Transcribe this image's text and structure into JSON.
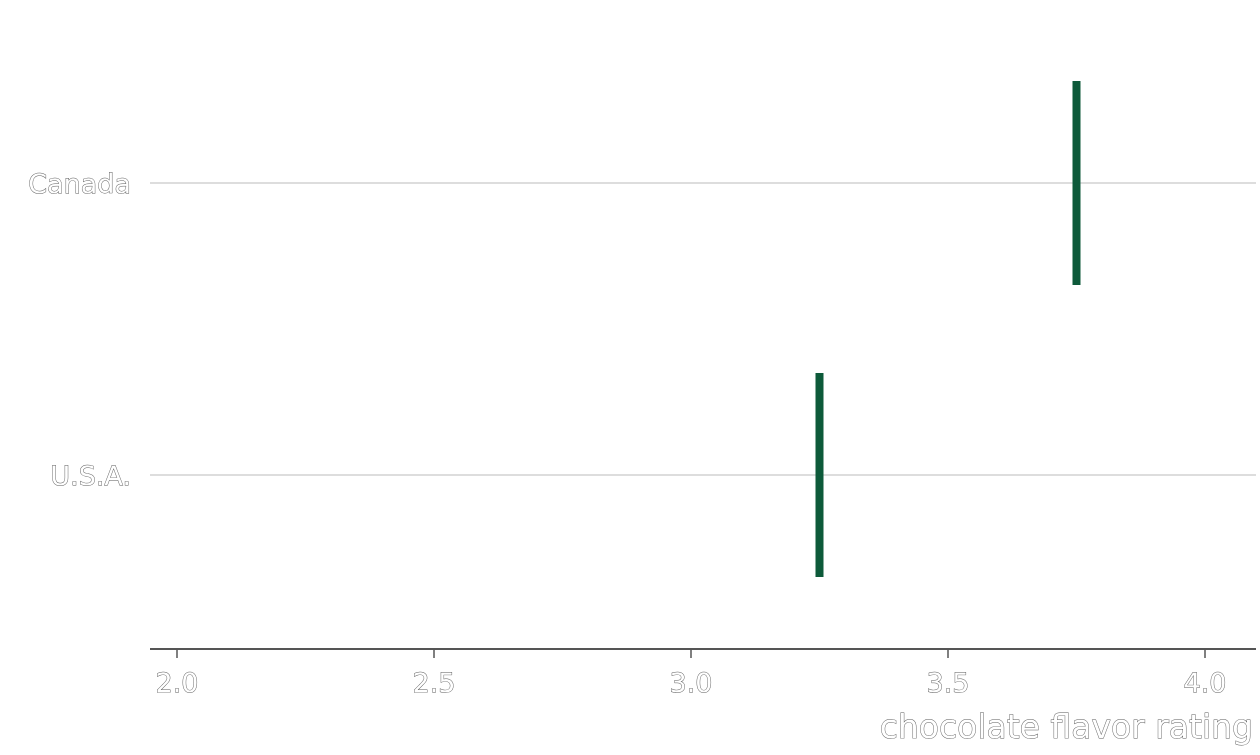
{
  "chart_data": {
    "type": "scatter",
    "mark": "vertical-tick",
    "categories": [
      "Canada",
      "U.S.A."
    ],
    "values": [
      3.75,
      3.25
    ],
    "xlabel": "chocolate flavor rating",
    "xlim": [
      2.0,
      4.0
    ],
    "x_ticks": [
      "2.0",
      "2.5",
      "3.0",
      "3.5",
      "4.0"
    ],
    "grid": "horizontal",
    "colors": {
      "mark": "#0d5a3a",
      "grid": "#dddddd",
      "axis": "#555555"
    }
  }
}
